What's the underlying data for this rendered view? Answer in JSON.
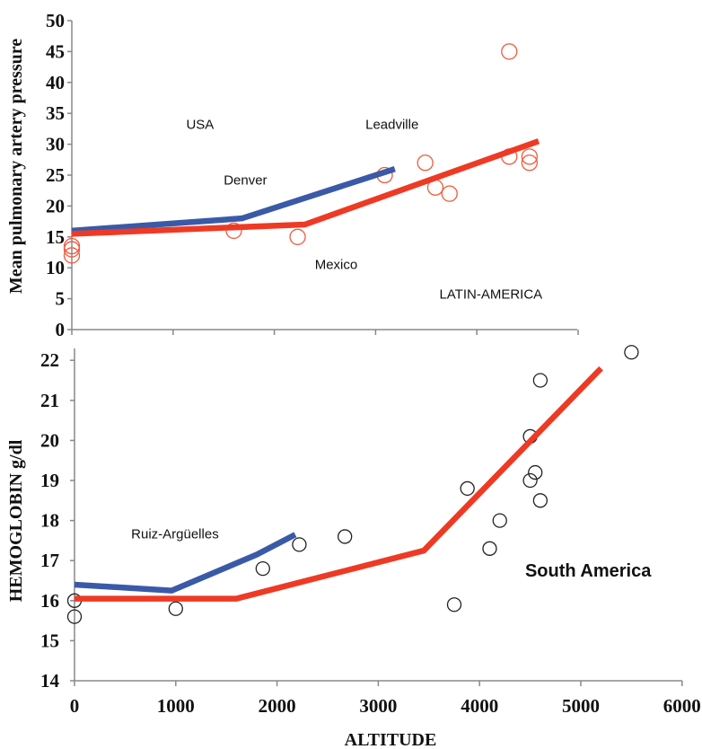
{
  "chart_data": [
    {
      "type": "scatter",
      "ylabel": "Mean pulmonary artery pressure",
      "xlabel": "",
      "xlim": [
        0,
        5000
      ],
      "ylim": [
        0,
        50
      ],
      "yticks": [
        0,
        5,
        10,
        15,
        20,
        25,
        30,
        35,
        40,
        45,
        50
      ],
      "xticks": [
        0,
        1000,
        2000,
        3000,
        4000,
        5000
      ],
      "grid": false,
      "marker_color": "#f05a3c",
      "points": [
        {
          "x": 0,
          "y": 12
        },
        {
          "x": 0,
          "y": 13
        },
        {
          "x": 0,
          "y": 13.5
        },
        {
          "x": 1600,
          "y": 16
        },
        {
          "x": 2230,
          "y": 15
        },
        {
          "x": 3090,
          "y": 25
        },
        {
          "x": 3490,
          "y": 27
        },
        {
          "x": 3590,
          "y": 23
        },
        {
          "x": 3730,
          "y": 22
        },
        {
          "x": 4320,
          "y": 45
        },
        {
          "x": 4320,
          "y": 28
        },
        {
          "x": 4520,
          "y": 28
        },
        {
          "x": 4520,
          "y": 27
        }
      ],
      "series": [
        {
          "color": "#3a5aa8",
          "x": [
            0,
            1680,
            3190
          ],
          "y": [
            16,
            18,
            26
          ]
        },
        {
          "color": "#ee3a24",
          "x": [
            0,
            2300,
            4610
          ],
          "y": [
            15.5,
            17,
            30.5
          ]
        }
      ],
      "annotations": [
        {
          "text": "USA",
          "x": 1130,
          "y": 32.5
        },
        {
          "text": "Leadville",
          "x": 2900,
          "y": 32.5
        },
        {
          "text": "Denver",
          "x": 1500,
          "y": 23.5
        },
        {
          "text": "Mexico",
          "x": 2400,
          "y": 9.8
        },
        {
          "text": "LATIN-AMERICA",
          "x": 3630,
          "y": 5
        }
      ]
    },
    {
      "type": "scatter",
      "ylabel": "HEMOGLOBIN g/dl",
      "xlabel": "ALTITUDE",
      "xlim": [
        0,
        6000
      ],
      "ylim": [
        14,
        22.5
      ],
      "yticks": [
        14,
        15,
        16,
        17,
        18,
        19,
        20,
        21,
        22
      ],
      "xticks": [
        0,
        1000,
        2000,
        3000,
        4000,
        5000,
        6000
      ],
      "grid": false,
      "marker_color": "#222222",
      "points": [
        {
          "x": 0,
          "y": 16
        },
        {
          "x": 0,
          "y": 15.6
        },
        {
          "x": 1000,
          "y": 15.8
        },
        {
          "x": 1860,
          "y": 16.8
        },
        {
          "x": 2220,
          "y": 17.4
        },
        {
          "x": 2670,
          "y": 17.6
        },
        {
          "x": 3750,
          "y": 15.9
        },
        {
          "x": 3880,
          "y": 18.8
        },
        {
          "x": 4100,
          "y": 17.3
        },
        {
          "x": 4200,
          "y": 18
        },
        {
          "x": 4500,
          "y": 19
        },
        {
          "x": 4550,
          "y": 19.2
        },
        {
          "x": 4500,
          "y": 20.1
        },
        {
          "x": 4600,
          "y": 18.5
        },
        {
          "x": 4600,
          "y": 21.5
        },
        {
          "x": 5500,
          "y": 22.2
        }
      ],
      "series": [
        {
          "color": "#3a5aa8",
          "x": [
            0,
            960,
            1800,
            2180
          ],
          "y": [
            16.4,
            16.25,
            17.15,
            17.65
          ]
        },
        {
          "color": "#ee3a24",
          "x": [
            0,
            1600,
            3450,
            5200
          ],
          "y": [
            16.05,
            16.05,
            17.25,
            21.8
          ]
        }
      ],
      "annotations": [
        {
          "text": "Ruiz-Argüelles",
          "x": 560,
          "y": 17.55,
          "bold": false
        },
        {
          "text": "South America",
          "x": 4450,
          "y": 16.6,
          "bold": true
        }
      ]
    }
  ]
}
